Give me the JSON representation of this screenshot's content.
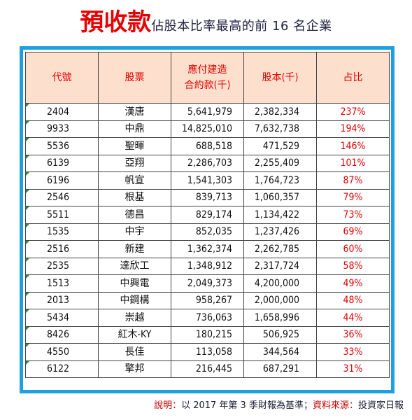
{
  "title": {
    "main": "預收款",
    "sub": "佔股本比率最高的前 16 名企業"
  },
  "table": {
    "headers": {
      "code": "代號",
      "stock": "股票",
      "receivable_line1": "應付建造",
      "receivable_line2": "合約款(千)",
      "capital": "股本(千)",
      "ratio": "占比"
    },
    "rows": [
      {
        "code": "2404",
        "name": "漢唐",
        "receivable": "5,641,979",
        "capital": "2,382,334",
        "ratio": "237%"
      },
      {
        "code": "9933",
        "name": "中鼎",
        "receivable": "14,825,010",
        "capital": "7,632,738",
        "ratio": "194%"
      },
      {
        "code": "5536",
        "name": "聖暉",
        "receivable": "688,518",
        "capital": "471,529",
        "ratio": "146%"
      },
      {
        "code": "6139",
        "name": "亞翔",
        "receivable": "2,286,703",
        "capital": "2,255,409",
        "ratio": "101%"
      },
      {
        "code": "6196",
        "name": "帆宣",
        "receivable": "1,541,303",
        "capital": "1,764,723",
        "ratio": "87%"
      },
      {
        "code": "2546",
        "name": "根基",
        "receivable": "839,713",
        "capital": "1,060,357",
        "ratio": "79%"
      },
      {
        "code": "5511",
        "name": "德昌",
        "receivable": "829,174",
        "capital": "1,134,422",
        "ratio": "73%"
      },
      {
        "code": "1535",
        "name": "中宇",
        "receivable": "852,035",
        "capital": "1,237,426",
        "ratio": "69%"
      },
      {
        "code": "2516",
        "name": "新建",
        "receivable": "1,362,374",
        "capital": "2,262,785",
        "ratio": "60%"
      },
      {
        "code": "2535",
        "name": "達欣工",
        "receivable": "1,348,912",
        "capital": "2,317,724",
        "ratio": "58%"
      },
      {
        "code": "1513",
        "name": "中興電",
        "receivable": "2,049,373",
        "capital": "4,200,000",
        "ratio": "49%"
      },
      {
        "code": "2013",
        "name": "中鋼構",
        "receivable": "958,267",
        "capital": "2,000,000",
        "ratio": "48%"
      },
      {
        "code": "5434",
        "name": "崇越",
        "receivable": "736,063",
        "capital": "1,658,996",
        "ratio": "44%"
      },
      {
        "code": "8426",
        "name": "紅木-KY",
        "receivable": "180,215",
        "capital": "506,925",
        "ratio": "36%"
      },
      {
        "code": "4550",
        "name": "長佳",
        "receivable": "113,058",
        "capital": "344,564",
        "ratio": "33%"
      },
      {
        "code": "6122",
        "name": "擎邦",
        "receivable": "216,445",
        "capital": "687,291",
        "ratio": "31%"
      }
    ]
  },
  "footnote": {
    "label1": "說明：",
    "text1": "以 2017 年第 3 季財報為基準；",
    "label2": "資料來源：",
    "text2": "投資家日報"
  },
  "colors": {
    "title_accent": "#e60000",
    "header_bg": "#fce0cd",
    "header_text": "#e00000",
    "frame_border": "#1e9fe0",
    "ratio_text": "#e00000",
    "cell_marker": "#2e8b2e"
  }
}
